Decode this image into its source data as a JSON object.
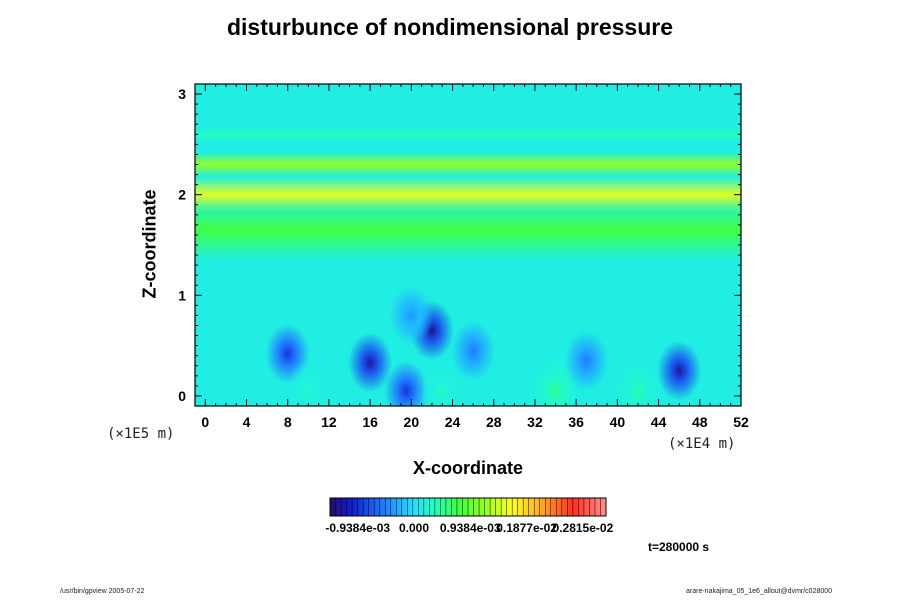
{
  "chart_data": {
    "type": "heatmap",
    "title": "disturbunce of nondimensional pressure",
    "xlabel": "X-coordinate",
    "ylabel": "Z-coordinate",
    "x_scale_note": "(×1E4 m)",
    "y_scale_note": "(×1E5 m)",
    "x_ticks": [
      "0",
      "4",
      "8",
      "12",
      "16",
      "20",
      "24",
      "28",
      "32",
      "36",
      "40",
      "44",
      "48",
      "52"
    ],
    "y_ticks": [
      "0",
      "1",
      "2",
      "3"
    ],
    "xlim": [
      -1,
      52
    ],
    "ylim": [
      -0.1,
      3.1
    ],
    "colorbar": {
      "labels": [
        "-0.9384e-03",
        "0.000",
        "0.9384e-03",
        "0.1877e-02",
        "0.2815e-02"
      ],
      "range": [
        -0.0014,
        0.0032
      ]
    },
    "bands": [
      {
        "z": 2.0,
        "width": 0.18,
        "value": 0.0015
      },
      {
        "z": 2.3,
        "width": 0.12,
        "value": 0.00115
      },
      {
        "z": 1.65,
        "width": 0.3,
        "value": 0.00075
      },
      {
        "z": 2.6,
        "width": 0.07,
        "value": 0.00035
      }
    ],
    "lows": [
      {
        "x": 8,
        "z": 0.42,
        "value": -0.0009
      },
      {
        "x": 16,
        "z": 0.33,
        "value": -0.0012
      },
      {
        "x": 22,
        "z": 0.65,
        "value": -0.00125
      },
      {
        "x": 46,
        "z": 0.25,
        "value": -0.0012
      },
      {
        "x": 19.5,
        "z": 0.05,
        "value": -0.0009
      },
      {
        "x": 26,
        "z": 0.45,
        "value": -0.0005
      },
      {
        "x": 37,
        "z": 0.35,
        "value": -0.0005
      },
      {
        "x": 20,
        "z": 0.8,
        "value": -0.00035
      }
    ],
    "highs": [
      {
        "x": 34,
        "z": 0.05,
        "value": 0.0005
      },
      {
        "x": 42,
        "z": 0.05,
        "value": 0.0004
      },
      {
        "x": 23,
        "z": 0.05,
        "value": 0.0003
      },
      {
        "x": 10,
        "z": 0.05,
        "value": 0.0003
      }
    ]
  },
  "time_label": "t=280000 s",
  "footer_left": "/usr/bin/gpview 2005-07-22",
  "footer_right": "arare-nakajima_05_1e6_allout@dvmr/c028000"
}
